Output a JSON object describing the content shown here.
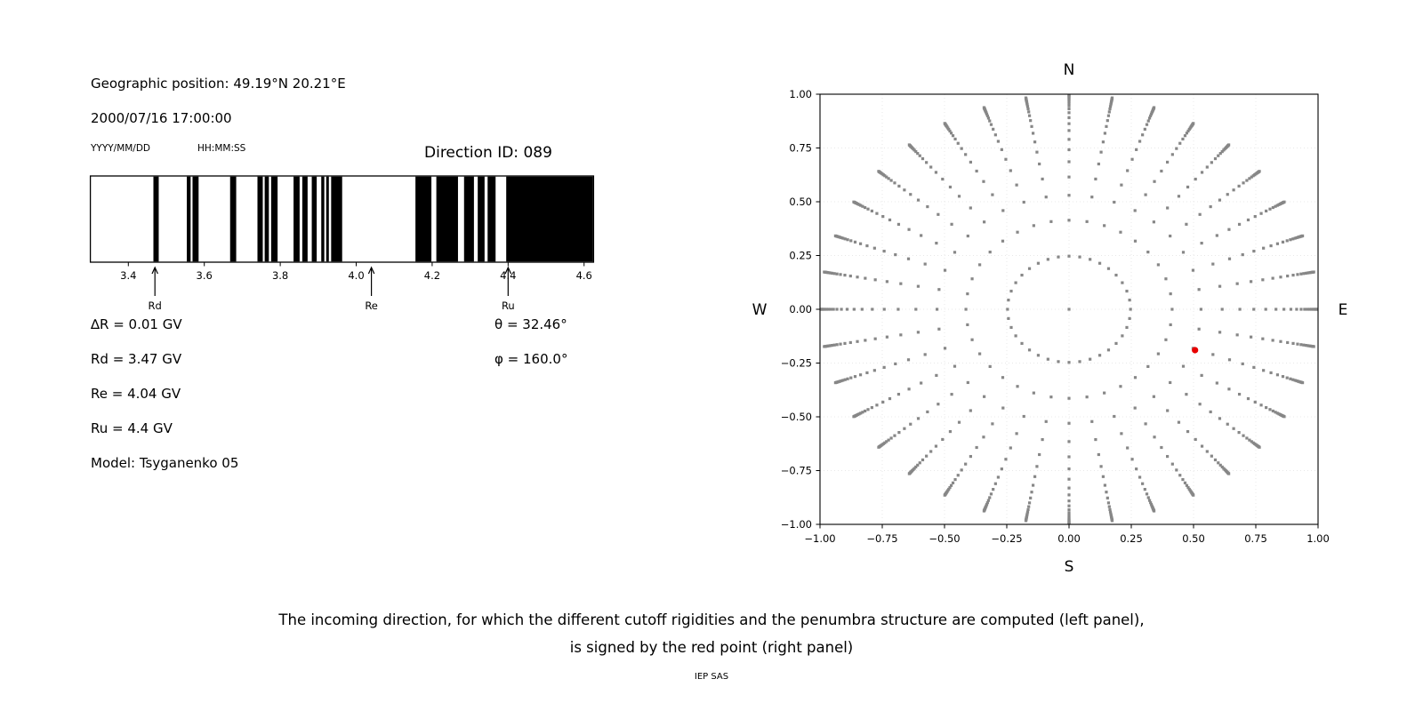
{
  "header": {
    "geographic_position": "Geographic position: 49.19°N 20.21°E",
    "datetime": "2000/07/16 17:00:00",
    "date_format_label": "YYYY/MM/DD",
    "time_format_label": "HH:MM:SS",
    "direction_id": "Direction ID: 089"
  },
  "info": {
    "delta_r": "∆R = 0.01 GV",
    "rd": "Rd = 3.47 GV",
    "re": "Re = 4.04 GV",
    "ru": "Ru = 4.4 GV",
    "model": "Model: Tsyganenko 05",
    "theta": "θ = 32.46°",
    "phi": "φ = 160.0°"
  },
  "caption": {
    "line1": "The incoming direction, for which the different cutoff rigidities and the penumbra structure are computed (left panel),",
    "line2": "is signed by the red point (right panel)"
  },
  "footer": "IEP SAS",
  "colors": {
    "bar": "#000000",
    "dot_gray": "#878787",
    "red_point": "#e80000",
    "grid_line": "#e8e8e8",
    "spine": "#000000"
  },
  "chart_data": [
    {
      "type": "bar",
      "name": "penumbra-barcode",
      "xlim": [
        3.3,
        4.625
      ],
      "xticks": {
        "values": [
          3.4,
          3.6,
          3.8,
          4.0,
          4.2,
          4.4,
          4.6
        ],
        "labels": [
          "3.4",
          "3.6",
          "3.8",
          "4.0",
          "4.2",
          "4.4",
          "4.6"
        ]
      },
      "forbidden_bands_gv": [
        [
          3.466,
          3.48
        ],
        [
          3.554,
          3.564
        ],
        [
          3.569,
          3.585
        ],
        [
          3.668,
          3.684
        ],
        [
          3.74,
          3.754
        ],
        [
          3.759,
          3.77
        ],
        [
          3.776,
          3.793
        ],
        [
          3.835,
          3.851
        ],
        [
          3.858,
          3.872
        ],
        [
          3.883,
          3.896
        ],
        [
          3.908,
          3.916
        ],
        [
          3.921,
          3.928
        ],
        [
          3.934,
          3.963
        ],
        [
          4.156,
          4.198
        ],
        [
          4.211,
          4.268
        ],
        [
          4.284,
          4.31
        ],
        [
          4.32,
          4.338
        ],
        [
          4.346,
          4.367
        ],
        [
          4.395,
          4.625
        ]
      ],
      "arrows": [
        {
          "label": "Rd",
          "value_gv": 3.47
        },
        {
          "label": "Re",
          "value_gv": 4.04
        },
        {
          "label": "Ru",
          "value_gv": 4.4
        }
      ]
    },
    {
      "type": "scatter",
      "name": "incoming-direction-grid",
      "xlim": [
        -1,
        1
      ],
      "ylim": [
        -1,
        1
      ],
      "xticks": {
        "values": [
          -1.0,
          -0.75,
          -0.5,
          -0.25,
          0.0,
          0.25,
          0.5,
          0.75,
          1.0
        ],
        "labels": [
          "−1.00",
          "−0.75",
          "−0.50",
          "−0.25",
          "0.00",
          "0.25",
          "0.50",
          "0.75",
          "1.00"
        ]
      },
      "yticks": {
        "values": [
          -1.0,
          -0.75,
          -0.5,
          -0.25,
          0.0,
          0.25,
          0.5,
          0.75,
          1.0
        ],
        "labels": [
          "−1.00",
          "−0.75",
          "−0.50",
          "−0.25",
          "0.00",
          "0.25",
          "0.50",
          "0.75",
          "1.00"
        ]
      },
      "compass": {
        "top": "N",
        "bottom": "S",
        "left": "W",
        "right": "E"
      },
      "grid_step": 0.25,
      "direction_grid": {
        "azimuth_start_deg": 0,
        "azimuth_step_deg": 10,
        "azimuth_count": 36,
        "ring_radii": [
          0.247,
          0.414,
          0.53,
          0.615,
          0.686,
          0.742,
          0.79,
          0.831,
          0.863,
          0.891,
          0.914,
          0.932,
          0.946,
          0.957,
          0.966,
          0.973,
          0.979,
          0.984,
          0.988,
          0.992,
          0.995,
          0.998
        ],
        "center_dot": true,
        "marker": "square",
        "marker_size_px": 3.2
      },
      "selected_direction": {
        "x": 0.506,
        "y": -0.19,
        "zenith_deg": 32.46,
        "azimuth_deg": 160.0,
        "radius_px": 3.6
      }
    }
  ]
}
